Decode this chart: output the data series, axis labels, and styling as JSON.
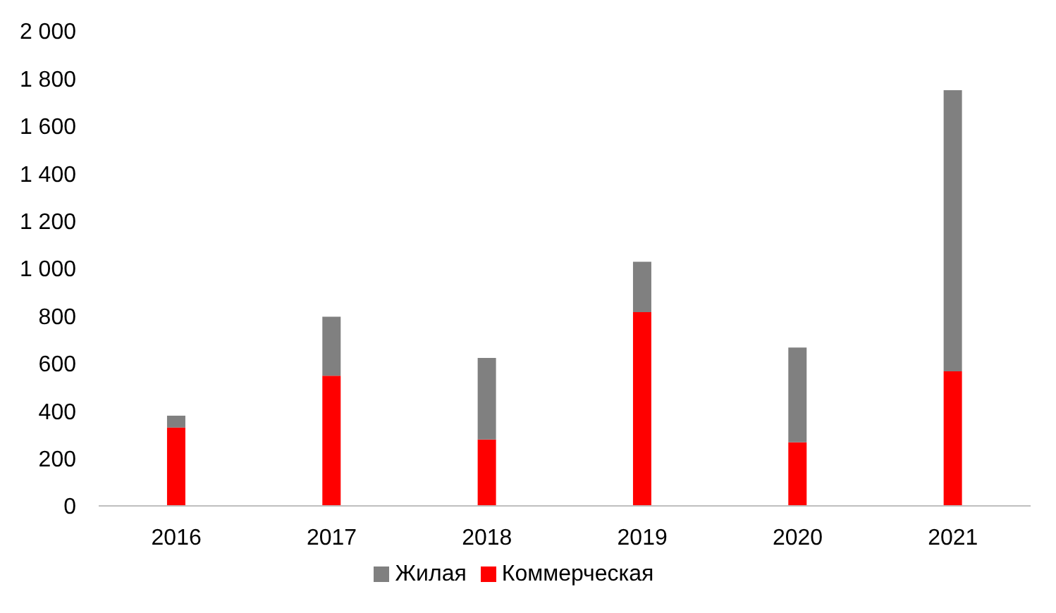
{
  "chart_data": {
    "type": "bar",
    "stacked": true,
    "categories": [
      "2016",
      "2017",
      "2018",
      "2019",
      "2020",
      "2021"
    ],
    "series": [
      {
        "name": "Коммерческая",
        "color": "#ff0000",
        "values": [
          330,
          548,
          280,
          816,
          268,
          567
        ]
      },
      {
        "name": "Жилая",
        "color": "#808080",
        "values": [
          50,
          249,
          343,
          212,
          399,
          1184
        ]
      }
    ],
    "ylim": [
      0,
      2000
    ],
    "yticks": [
      0,
      200,
      400,
      600,
      800,
      {
        "value": 1000,
        "label": "1 000"
      },
      {
        "value": 1200,
        "label": "1 200"
      },
      {
        "value": 1400,
        "label": "1 400"
      },
      {
        "value": 1600,
        "label": "1 600"
      },
      {
        "value": 1800,
        "label": "1 800"
      },
      {
        "value": 2000,
        "label": "2 000"
      }
    ],
    "grid": false,
    "legend": "bottom"
  }
}
